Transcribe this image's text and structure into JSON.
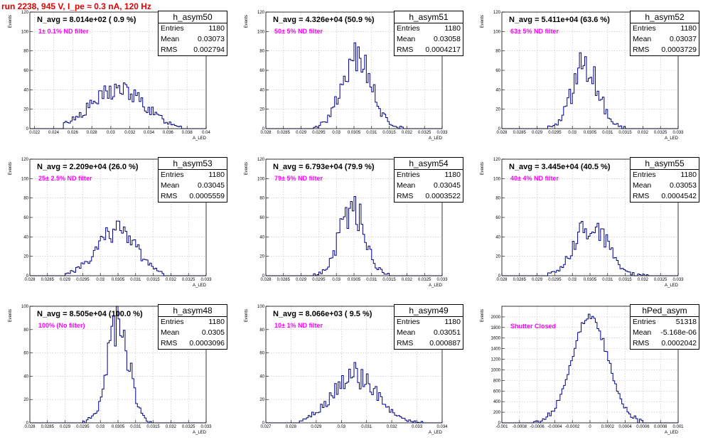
{
  "run_title": "run 2238,   945 V, I_pe ≈ 0.3 nA, 120 Hz",
  "chart_data": [
    {
      "type": "bar",
      "name": "h_asym50",
      "title": "N_avg = 8.014e+02 ( 0.9 %)",
      "annotation": "1± 0.1% ND filter",
      "ylabel": "Events",
      "xlabel": "A_LED",
      "xlim": [
        0.0215,
        0.04
      ],
      "ylim": [
        0,
        120
      ],
      "xticks": [
        0.022,
        0.024,
        0.026,
        0.028,
        0.03,
        0.032,
        0.034,
        0.036,
        0.038,
        0.04
      ],
      "xtick_labels": [
        "0.022",
        "0.024",
        "0.026",
        "0.028",
        "0.03",
        "0.032",
        "0.034",
        "0.036",
        "0.038",
        "0.04"
      ],
      "yticks": [
        0,
        20,
        40,
        60,
        80,
        100,
        120
      ],
      "ytick_labels": [
        "0",
        "20",
        "40",
        "60",
        "80",
        "100",
        "120"
      ],
      "grid": true,
      "stats": {
        "entries_label": "Entries",
        "entries": "1180",
        "mean_label": "Mean",
        "mean": "0.03073",
        "rms_label": "RMS",
        "rms": "0.002794"
      },
      "hist": {
        "peak": 40,
        "mean": 0.03073,
        "sigma": 0.0028,
        "xmin": 0.025,
        "xmax": 0.0375
      }
    },
    {
      "type": "bar",
      "name": "h_asym51",
      "title": "N_avg = 4.326e+04 (50.9 %)",
      "annotation": "50± 5% ND filter",
      "ylabel": "Events",
      "xlabel": "A_LED",
      "xlim": [
        0.028,
        0.033
      ],
      "ylim": [
        0,
        120
      ],
      "xticks": [
        0.028,
        0.0285,
        0.029,
        0.0295,
        0.03,
        0.0305,
        0.031,
        0.0315,
        0.032,
        0.0325,
        0.033
      ],
      "xtick_labels": [
        "0.028",
        "0.0285",
        "0.029",
        "0.0295",
        "0.03",
        "0.0305",
        "0.031",
        "0.0315",
        "0.032",
        "0.0325",
        "0.033"
      ],
      "yticks": [
        0,
        20,
        40,
        60,
        80,
        100,
        120
      ],
      "ytick_labels": [
        "0",
        "20",
        "40",
        "60",
        "80",
        "100",
        "120"
      ],
      "grid": true,
      "stats": {
        "entries_label": "Entries",
        "entries": "1180",
        "mean_label": "Mean",
        "mean": "0.03058",
        "rms_label": "RMS",
        "rms": "0.0004217"
      },
      "hist": {
        "peak": 70,
        "mean": 0.03058,
        "sigma": 0.00042,
        "xmin": 0.0293,
        "xmax": 0.032
      }
    },
    {
      "type": "bar",
      "name": "h_asym52",
      "title": "N_avg = 5.411e+04 (63.6 %)",
      "annotation": "63± 5% ND filter",
      "ylabel": "Events",
      "xlabel": "A_LED",
      "xlim": [
        0.028,
        0.033
      ],
      "ylim": [
        0,
        120
      ],
      "xticks": [
        0.028,
        0.0285,
        0.029,
        0.0295,
        0.03,
        0.0305,
        0.031,
        0.0315,
        0.032,
        0.0325,
        0.033
      ],
      "xtick_labels": [
        "0.028",
        "0.0285",
        "0.029",
        "0.0295",
        "0.03",
        "0.0305",
        "0.031",
        "0.0315",
        "0.032",
        "0.0325",
        "0.033"
      ],
      "yticks": [
        0,
        20,
        40,
        60,
        80,
        100,
        120
      ],
      "ytick_labels": [
        "0",
        "20",
        "40",
        "60",
        "80",
        "100",
        "120"
      ],
      "grid": true,
      "stats": {
        "entries_label": "Entries",
        "entries": "1180",
        "mean_label": "Mean",
        "mean": "0.03037",
        "rms_label": "RMS",
        "rms": "0.0003729"
      },
      "hist": {
        "peak": 66,
        "mean": 0.03037,
        "sigma": 0.00037,
        "xmin": 0.0293,
        "xmax": 0.0315
      }
    },
    {
      "type": "bar",
      "name": "h_asym53",
      "title": "N_avg = 2.209e+04 (26.0 %)",
      "annotation": "25± 2.5% ND filter",
      "ylabel": "Events",
      "xlabel": "A_LED",
      "xlim": [
        0.028,
        0.033
      ],
      "ylim": [
        0,
        120
      ],
      "xticks": [
        0.028,
        0.0285,
        0.029,
        0.0295,
        0.03,
        0.0305,
        0.031,
        0.0315,
        0.032,
        0.0325,
        0.033
      ],
      "xtick_labels": [
        "0.028",
        "0.0285",
        "0.029",
        "0.0295",
        "0.03",
        "0.0305",
        "0.031",
        "0.0315",
        "0.032",
        "0.0325",
        "0.033"
      ],
      "yticks": [
        0,
        20,
        40,
        60,
        80,
        100,
        120
      ],
      "ytick_labels": [
        "0",
        "20",
        "40",
        "60",
        "80",
        "100",
        "120"
      ],
      "grid": true,
      "stats": {
        "entries_label": "Entries",
        "entries": "1180",
        "mean_label": "Mean",
        "mean": "0.03045",
        "rms_label": "RMS",
        "rms": "0.0005559"
      },
      "hist": {
        "peak": 48,
        "mean": 0.03045,
        "sigma": 0.00055,
        "xmin": 0.029,
        "xmax": 0.0318
      }
    },
    {
      "type": "bar",
      "name": "h_asym54",
      "title": "N_avg = 6.793e+04 (79.9 %)",
      "annotation": "79± 5% ND filter",
      "ylabel": "Events",
      "xlabel": "A_LED",
      "xlim": [
        0.028,
        0.033
      ],
      "ylim": [
        0,
        120
      ],
      "xticks": [
        0.028,
        0.0285,
        0.029,
        0.0295,
        0.03,
        0.0305,
        0.031,
        0.0315,
        0.032,
        0.0325,
        0.033
      ],
      "xtick_labels": [
        "0.028",
        "0.0285",
        "0.029",
        "0.0295",
        "0.03",
        "0.0305",
        "0.031",
        "0.0315",
        "0.032",
        "0.0325",
        "0.033"
      ],
      "yticks": [
        0,
        20,
        40,
        60,
        80,
        100,
        120
      ],
      "ytick_labels": [
        "0",
        "20",
        "40",
        "60",
        "80",
        "100",
        "120"
      ],
      "grid": true,
      "stats": {
        "entries_label": "Entries",
        "entries": "1180",
        "mean_label": "Mean",
        "mean": "0.03045",
        "rms_label": "RMS",
        "rms": "0.0003522"
      },
      "hist": {
        "peak": 70,
        "mean": 0.03045,
        "sigma": 0.00035,
        "xmin": 0.0293,
        "xmax": 0.0315
      }
    },
    {
      "type": "bar",
      "name": "h_asym55",
      "title": "N_avg = 3.445e+04 (40.5 %)",
      "annotation": "40± 4% ND filter",
      "ylabel": "Events",
      "xlabel": "A_LED",
      "xlim": [
        0.028,
        0.033
      ],
      "ylim": [
        0,
        120
      ],
      "xticks": [
        0.028,
        0.0285,
        0.029,
        0.0295,
        0.03,
        0.0305,
        0.031,
        0.0315,
        0.032,
        0.0325,
        0.033
      ],
      "xtick_labels": [
        "0.028",
        "0.0285",
        "0.029",
        "0.0295",
        "0.03",
        "0.0305",
        "0.031",
        "0.0315",
        "0.032",
        "0.0325",
        "0.033"
      ],
      "yticks": [
        0,
        20,
        40,
        60,
        80,
        100,
        120
      ],
      "ytick_labels": [
        "0",
        "20",
        "40",
        "60",
        "80",
        "100",
        "120"
      ],
      "grid": true,
      "stats": {
        "entries_label": "Entries",
        "entries": "1180",
        "mean_label": "Mean",
        "mean": "0.03053",
        "rms_label": "RMS",
        "rms": "0.0004542"
      },
      "hist": {
        "peak": 55,
        "mean": 0.03053,
        "sigma": 0.00045,
        "xmin": 0.0293,
        "xmax": 0.0322
      }
    },
    {
      "type": "bar",
      "name": "h_asym48",
      "title": "N_avg = 8.505e+04 (100.0 %)",
      "annotation": "100% (No filter)",
      "ylabel": "Events",
      "xlabel": "A_LED",
      "xlim": [
        0.028,
        0.033
      ],
      "ylim": [
        0,
        100
      ],
      "xticks": [
        0.028,
        0.0285,
        0.029,
        0.0295,
        0.03,
        0.0305,
        0.031,
        0.0315,
        0.032,
        0.0325,
        0.033
      ],
      "xtick_labels": [
        "0.028",
        "0.0285",
        "0.029",
        "0.0295",
        "0.03",
        "0.0305",
        "0.031",
        "0.0315",
        "0.032",
        "0.0325",
        "0.033"
      ],
      "yticks": [
        0,
        20,
        40,
        60,
        80,
        100
      ],
      "ytick_labels": [
        "0",
        "20",
        "40",
        "60",
        "80",
        "100"
      ],
      "grid": true,
      "stats": {
        "entries_label": "Entries",
        "entries": "1180",
        "mean_label": "Mean",
        "mean": "0.0305",
        "rms_label": "RMS",
        "rms": "0.0003096"
      },
      "hist": {
        "peak": 85,
        "mean": 0.0305,
        "sigma": 0.00031,
        "xmin": 0.0295,
        "xmax": 0.0315
      }
    },
    {
      "type": "bar",
      "name": "h_asym49",
      "title": "N_avg = 8.066e+03 ( 9.5 %)",
      "annotation": "10± 1% ND filter",
      "ylabel": "Events",
      "xlabel": "A_LED",
      "xlim": [
        0.027,
        0.034
      ],
      "ylim": [
        0,
        100
      ],
      "xticks": [
        0.027,
        0.028,
        0.029,
        0.03,
        0.031,
        0.032,
        0.033,
        0.034
      ],
      "xtick_labels": [
        "0.027",
        "0.028",
        "0.029",
        "0.03",
        "0.031",
        "0.032",
        "0.033",
        "0.034"
      ],
      "yticks": [
        0,
        20,
        40,
        60,
        80,
        100
      ],
      "ytick_labels": [
        "0",
        "20",
        "40",
        "60",
        "80",
        "100"
      ],
      "grid": true,
      "stats": {
        "entries_label": "Entries",
        "entries": "1180",
        "mean_label": "Mean",
        "mean": "0.03051",
        "rms_label": "RMS",
        "rms": "0.000887"
      },
      "hist": {
        "peak": 40,
        "mean": 0.03051,
        "sigma": 0.00088,
        "xmin": 0.0283,
        "xmax": 0.0333
      }
    },
    {
      "type": "bar",
      "name": "hPed_asym",
      "title": "",
      "annotation": "Shutter Closed",
      "ylabel": "Events",
      "xlabel": "A_LED",
      "xlim": [
        -0.001,
        0.001
      ],
      "ylim": [
        0,
        2200
      ],
      "xticks": [
        -0.001,
        -0.0008,
        -0.0006,
        -0.0004,
        -0.0002,
        0,
        0.0002,
        0.0004,
        0.0006,
        0.0008,
        0.001
      ],
      "xtick_labels": [
        "-0.001",
        "-0.0008",
        "-0.0006",
        "-0.0004",
        "-0.0002",
        "0",
        "0.0002",
        "0.0004",
        "0.0006",
        "0.0008",
        "0.001"
      ],
      "yticks": [
        0,
        200,
        400,
        600,
        800,
        1000,
        1200,
        1400,
        1600,
        1800,
        2000
      ],
      "ytick_labels": [
        "0",
        "200",
        "400",
        "600",
        "800",
        "1000",
        "1200",
        "1400",
        "1600",
        "1800",
        "2000"
      ],
      "grid": true,
      "stats": {
        "entries_label": "Entries",
        "entries": "51318",
        "mean_label": "Mean",
        "mean": "-5.168e-06",
        "rms_label": "RMS",
        "rms": "0.0002042"
      },
      "hist": {
        "peak": 2000,
        "mean": 0,
        "sigma": 0.000204,
        "xmin": -0.0007,
        "xmax": 0.0007
      }
    }
  ]
}
